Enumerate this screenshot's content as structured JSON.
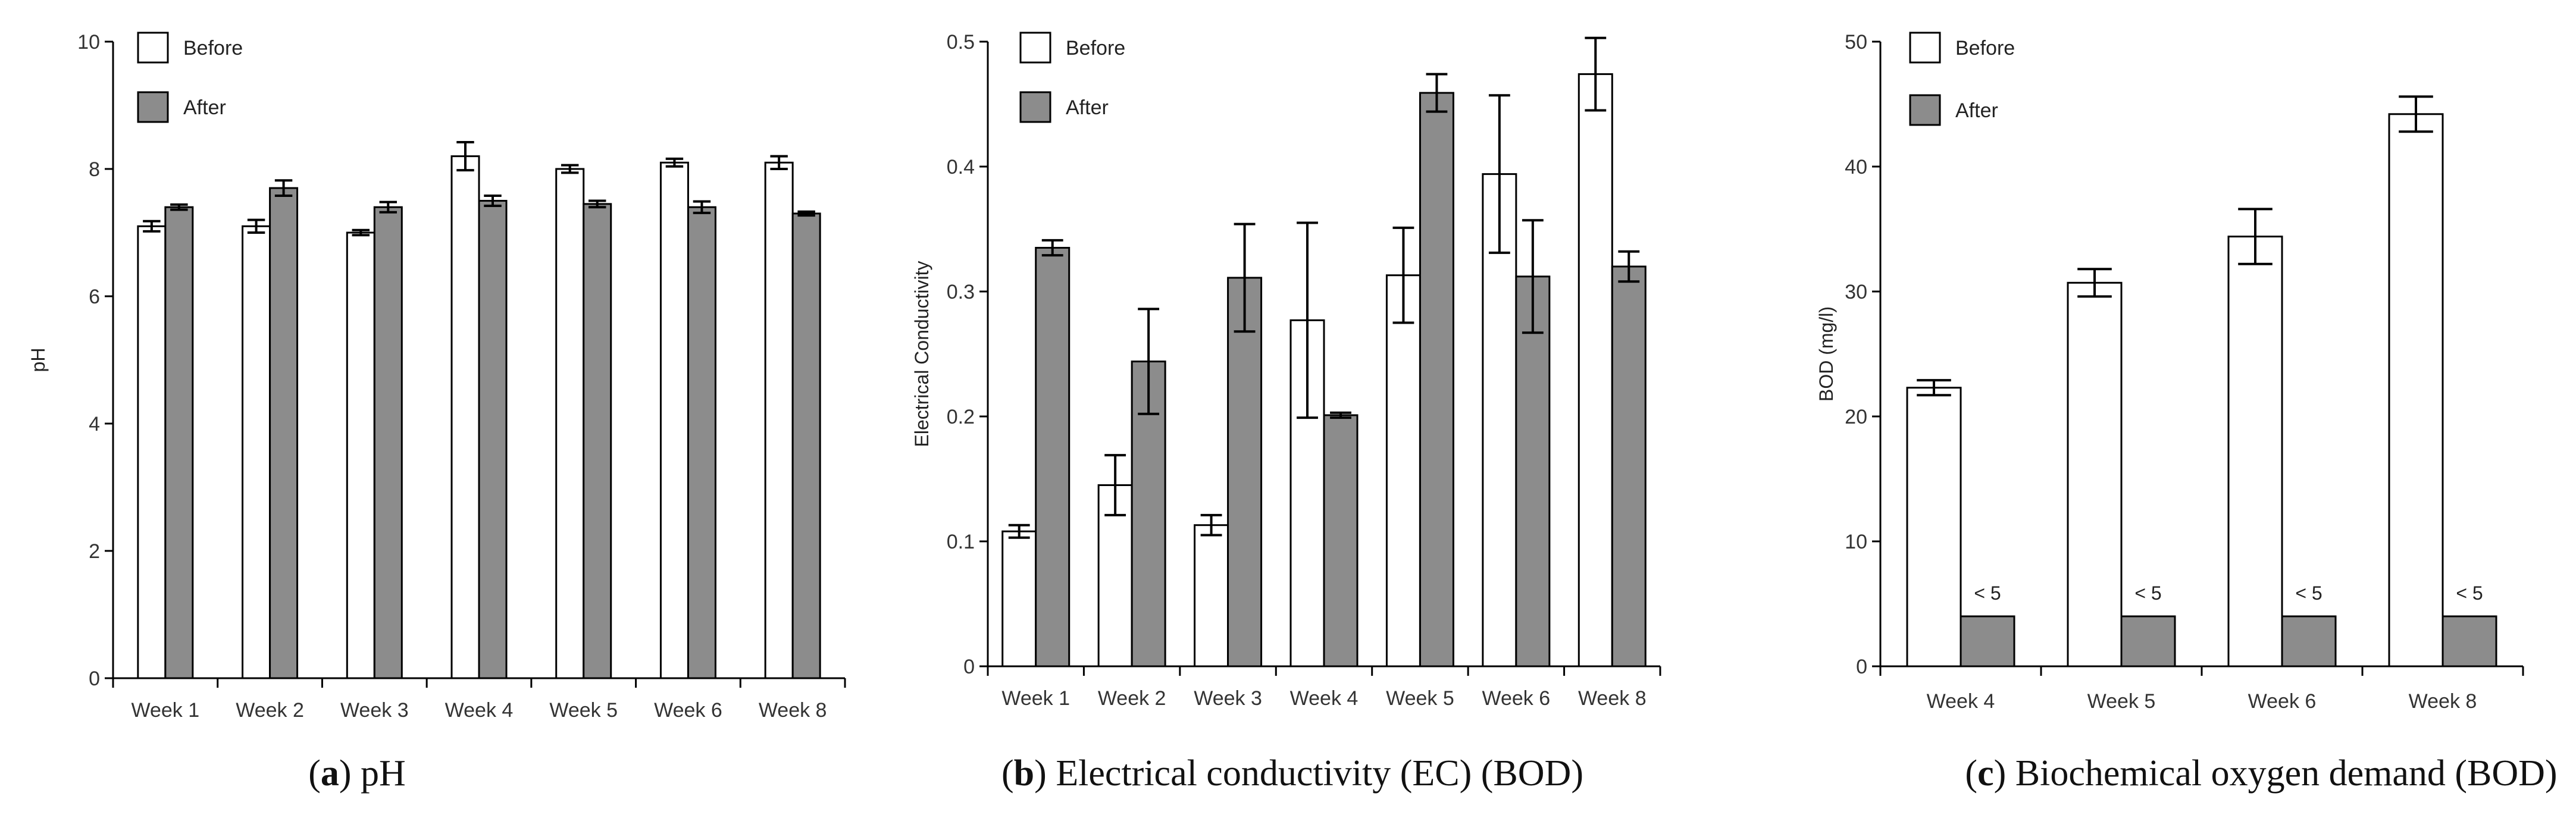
{
  "colors": {
    "before": "#ffffff",
    "after": "#8c8c8c",
    "axis": "#000000"
  },
  "chart_data": [
    {
      "type": "bar",
      "id": "a",
      "caption_letter": "a",
      "caption_rest": "pH",
      "title": "pH",
      "xlabel": "",
      "ylabel": "pH",
      "ylim": [
        0,
        10
      ],
      "yticks": [
        0,
        2,
        4,
        6,
        8,
        10
      ],
      "ytick_labels": [
        "0",
        "2",
        "4",
        "6",
        "8",
        "10"
      ],
      "legend": {
        "position": "top-left"
      },
      "categories": [
        "Week 1",
        "Week 2",
        "Week 3",
        "Week 4",
        "Week 5",
        "Week 6",
        "Week 8"
      ],
      "series": [
        {
          "name": "Before",
          "values": [
            7.1,
            7.1,
            7.0,
            8.2,
            8.0,
            8.1,
            8.1
          ],
          "errors": [
            0.08,
            0.1,
            0.04,
            0.22,
            0.06,
            0.06,
            0.1
          ]
        },
        {
          "name": "After",
          "values": [
            7.4,
            7.7,
            7.4,
            7.5,
            7.45,
            7.4,
            7.3
          ],
          "errors": [
            0.04,
            0.12,
            0.08,
            0.08,
            0.05,
            0.09,
            0.03
          ]
        }
      ],
      "annotations": []
    },
    {
      "type": "bar",
      "id": "b",
      "caption_letter": "b",
      "caption_rest": "Electrical conductivity (EC) (BOD)",
      "title": "Electrical conductivity (EC) (BOD)",
      "xlabel": "",
      "ylabel": "Electrical Conductivity",
      "ylim": [
        0,
        0.5
      ],
      "yticks": [
        0,
        0.1,
        0.2,
        0.3,
        0.4,
        0.5
      ],
      "ytick_labels": [
        "0",
        "0.1",
        "0.2",
        "0.3",
        "0.4",
        "0.5"
      ],
      "legend": {
        "position": "top-left"
      },
      "categories": [
        "Week 1",
        "Week 2",
        "Week 3",
        "Week 4",
        "Week 5",
        "Week 6",
        "Week 8"
      ],
      "series": [
        {
          "name": "Before",
          "values": [
            0.108,
            0.145,
            0.113,
            0.277,
            0.313,
            0.394,
            0.474
          ],
          "errors": [
            0.005,
            0.024,
            0.008,
            0.078,
            0.038,
            0.063,
            0.029
          ]
        },
        {
          "name": "After",
          "values": [
            0.335,
            0.244,
            0.311,
            0.201,
            0.459,
            0.312,
            0.32
          ],
          "errors": [
            0.006,
            0.042,
            0.043,
            0.002,
            0.015,
            0.045,
            0.012
          ]
        }
      ],
      "annotations": []
    },
    {
      "type": "bar",
      "id": "c",
      "caption_letter": "c",
      "caption_rest": "Biochemical oxygen demand (BOD)",
      "title": "Biochemical oxygen demand (BOD)",
      "xlabel": "",
      "ylabel": "BOD (mg/l)",
      "ylim": [
        0,
        50
      ],
      "yticks": [
        0,
        10,
        20,
        30,
        40,
        50
      ],
      "ytick_labels": [
        "0",
        "10",
        "20",
        "30",
        "40",
        "50"
      ],
      "legend": {
        "position": "top-left"
      },
      "categories": [
        "Week 4",
        "Week 5",
        "Week 6",
        "Week 8"
      ],
      "series": [
        {
          "name": "Before",
          "values": [
            22.3,
            30.7,
            34.4,
            44.2
          ],
          "errors": [
            0.6,
            1.1,
            2.2,
            1.4
          ]
        },
        {
          "name": "After",
          "values": [
            4,
            4,
            4,
            4
          ],
          "errors": [
            0,
            0,
            0,
            0
          ]
        }
      ],
      "annotations": [
        "< 5",
        "< 5",
        "< 5",
        "< 5"
      ]
    }
  ]
}
